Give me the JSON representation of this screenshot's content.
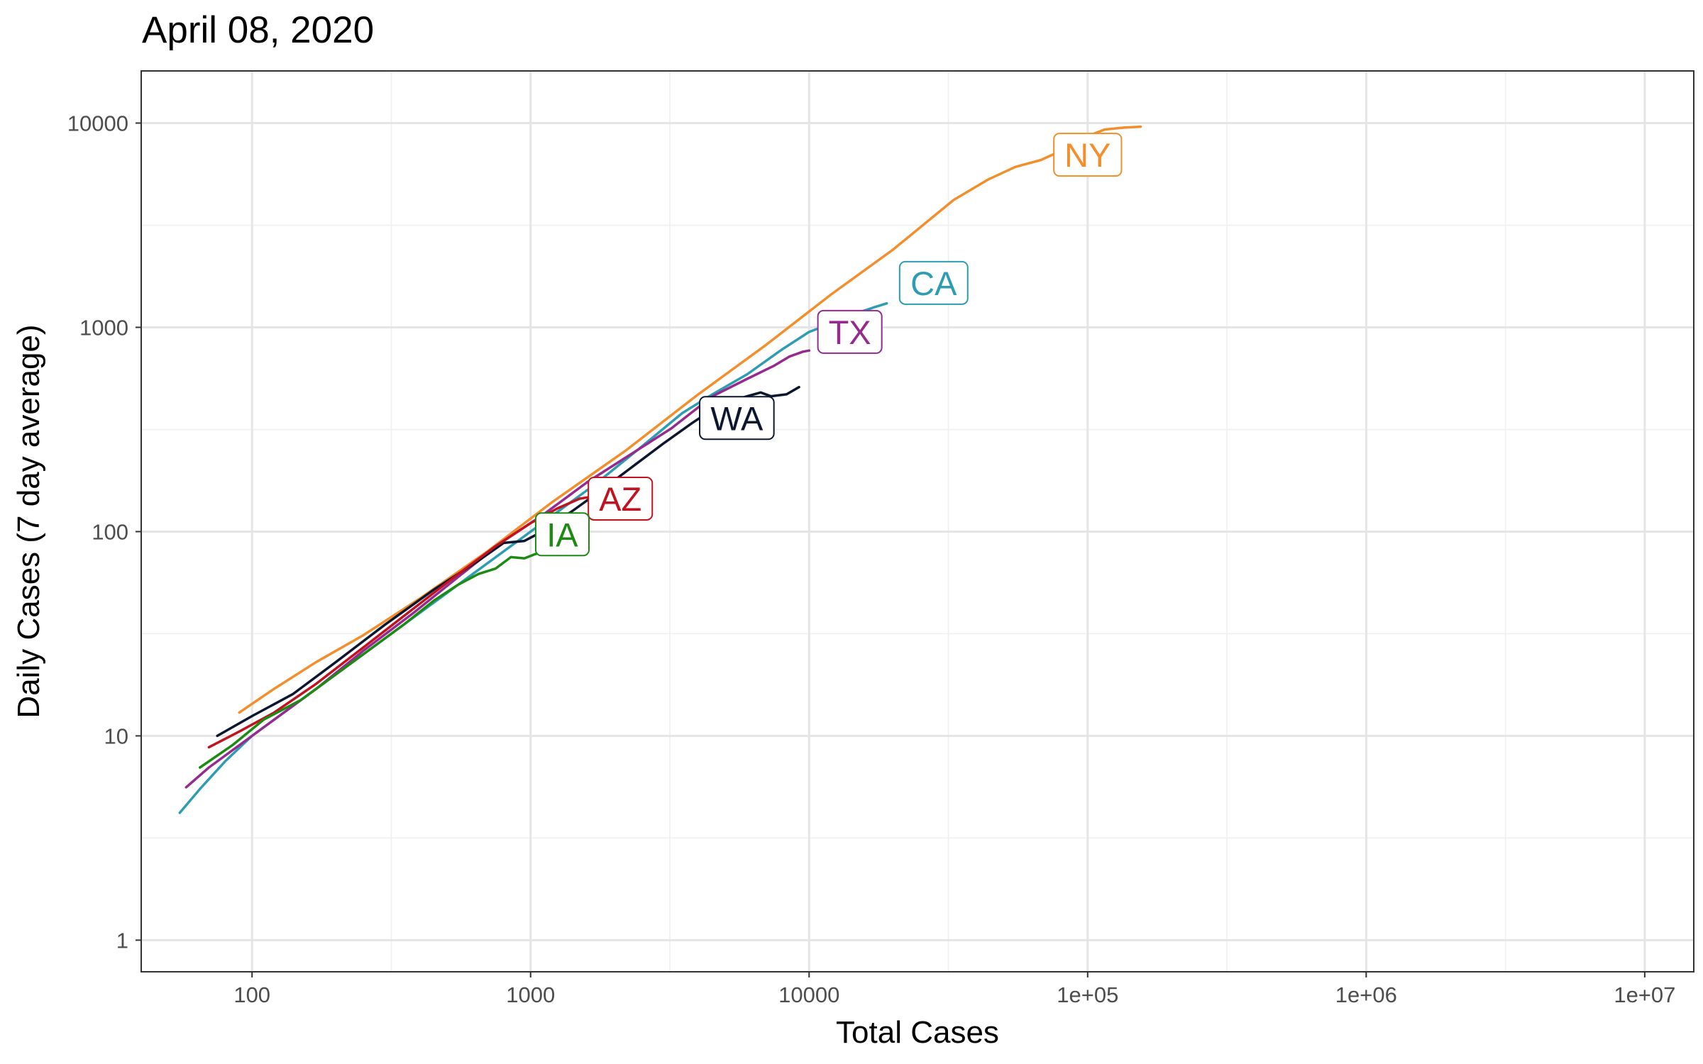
{
  "chart_data": {
    "type": "line",
    "title": "April 08, 2020",
    "xlabel": "Total Cases",
    "ylabel": "Daily Cases (7 day average)",
    "x_scale": "log10",
    "y_scale": "log10",
    "xlim": [
      40,
      15000000
    ],
    "ylim": [
      0.7,
      18000
    ],
    "x_ticks": [
      100,
      1000,
      10000,
      100000,
      1000000,
      10000000
    ],
    "x_tick_labels": [
      "100",
      "1000",
      "10000",
      "1e+05",
      "1e+06",
      "1e+07"
    ],
    "y_ticks": [
      1,
      10,
      100,
      1000,
      10000
    ],
    "y_tick_labels": [
      "1",
      "10",
      "100",
      "1000",
      "10000"
    ],
    "grid": true,
    "legend": "none",
    "series": [
      {
        "name": "NY",
        "color": "#f28e2b",
        "label_at": [
          100000,
          7000
        ],
        "points": [
          [
            90,
            13
          ],
          [
            120,
            17
          ],
          [
            170,
            23
          ],
          [
            250,
            31
          ],
          [
            400,
            47
          ],
          [
            700,
            80
          ],
          [
            1200,
            140
          ],
          [
            2200,
            250
          ],
          [
            4000,
            470
          ],
          [
            7000,
            820
          ],
          [
            12000,
            1450
          ],
          [
            20000,
            2400
          ],
          [
            33000,
            4200
          ],
          [
            44000,
            5300
          ],
          [
            55000,
            6100
          ],
          [
            68000,
            6600
          ],
          [
            80000,
            7300
          ],
          [
            95000,
            8400
          ],
          [
            115000,
            9300
          ],
          [
            135000,
            9500
          ],
          [
            155000,
            9600
          ]
        ]
      },
      {
        "name": "CA",
        "color": "#2e9db2",
        "label_at": [
          28000,
          1650
        ],
        "points": [
          [
            55,
            4.2
          ],
          [
            65,
            5.5
          ],
          [
            80,
            7.5
          ],
          [
            100,
            10
          ],
          [
            140,
            14
          ],
          [
            200,
            20
          ],
          [
            300,
            30
          ],
          [
            450,
            45
          ],
          [
            650,
            65
          ],
          [
            900,
            90
          ],
          [
            1200,
            120
          ],
          [
            1700,
            170
          ],
          [
            2500,
            260
          ],
          [
            3500,
            380
          ],
          [
            4500,
            470
          ],
          [
            6000,
            590
          ],
          [
            8000,
            780
          ],
          [
            10000,
            950
          ],
          [
            11500,
            1020
          ],
          [
            13000,
            1100
          ],
          [
            15000,
            1180
          ],
          [
            17000,
            1250
          ],
          [
            19000,
            1310
          ]
        ]
      },
      {
        "name": "TX",
        "color": "#952a8f",
        "label_at": [
          14000,
          950
        ],
        "points": [
          [
            58,
            5.6
          ],
          [
            70,
            7
          ],
          [
            90,
            9
          ],
          [
            120,
            12
          ],
          [
            170,
            17
          ],
          [
            250,
            26
          ],
          [
            380,
            40
          ],
          [
            550,
            60
          ],
          [
            800,
            90
          ],
          [
            1100,
            120
          ],
          [
            1600,
            175
          ],
          [
            2300,
            240
          ],
          [
            3200,
            320
          ],
          [
            4500,
            460
          ],
          [
            6000,
            560
          ],
          [
            7500,
            650
          ],
          [
            8500,
            720
          ],
          [
            9500,
            760
          ],
          [
            10000,
            770
          ]
        ]
      },
      {
        "name": "WA",
        "color": "#0c162f",
        "label_at": [
          5500,
          360
        ],
        "points": [
          [
            75,
            10
          ],
          [
            100,
            12.5
          ],
          [
            140,
            16
          ],
          [
            200,
            23
          ],
          [
            300,
            35
          ],
          [
            450,
            52
          ],
          [
            650,
            72
          ],
          [
            800,
            88
          ],
          [
            950,
            90
          ],
          [
            1100,
            100
          ],
          [
            1400,
            125
          ],
          [
            1800,
            160
          ],
          [
            2400,
            215
          ],
          [
            3000,
            270
          ],
          [
            3800,
            340
          ],
          [
            4800,
            420
          ],
          [
            6000,
            460
          ],
          [
            6700,
            480
          ],
          [
            7300,
            460
          ],
          [
            8300,
            470
          ],
          [
            9200,
            510
          ]
        ]
      },
      {
        "name": "AZ",
        "color": "#c1121f",
        "label_at": [
          2100,
          145
        ],
        "points": [
          [
            70,
            8.8
          ],
          [
            90,
            10.5
          ],
          [
            120,
            13
          ],
          [
            170,
            18
          ],
          [
            250,
            27
          ],
          [
            380,
            42
          ],
          [
            550,
            62
          ],
          [
            750,
            85
          ],
          [
            1000,
            110
          ],
          [
            1250,
            130
          ],
          [
            1500,
            145
          ],
          [
            1750,
            150
          ]
        ]
      },
      {
        "name": "IA",
        "color": "#1d8a14",
        "label_at": [
          1300,
          97
        ],
        "points": [
          [
            65,
            7
          ],
          [
            85,
            9
          ],
          [
            110,
            12
          ],
          [
            150,
            15
          ],
          [
            200,
            20
          ],
          [
            280,
            28
          ],
          [
            350,
            35
          ],
          [
            450,
            46
          ],
          [
            550,
            55
          ],
          [
            650,
            62
          ],
          [
            750,
            66
          ],
          [
            850,
            75
          ],
          [
            950,
            74
          ],
          [
            1050,
            78
          ],
          [
            1150,
            85
          ]
        ]
      }
    ]
  }
}
